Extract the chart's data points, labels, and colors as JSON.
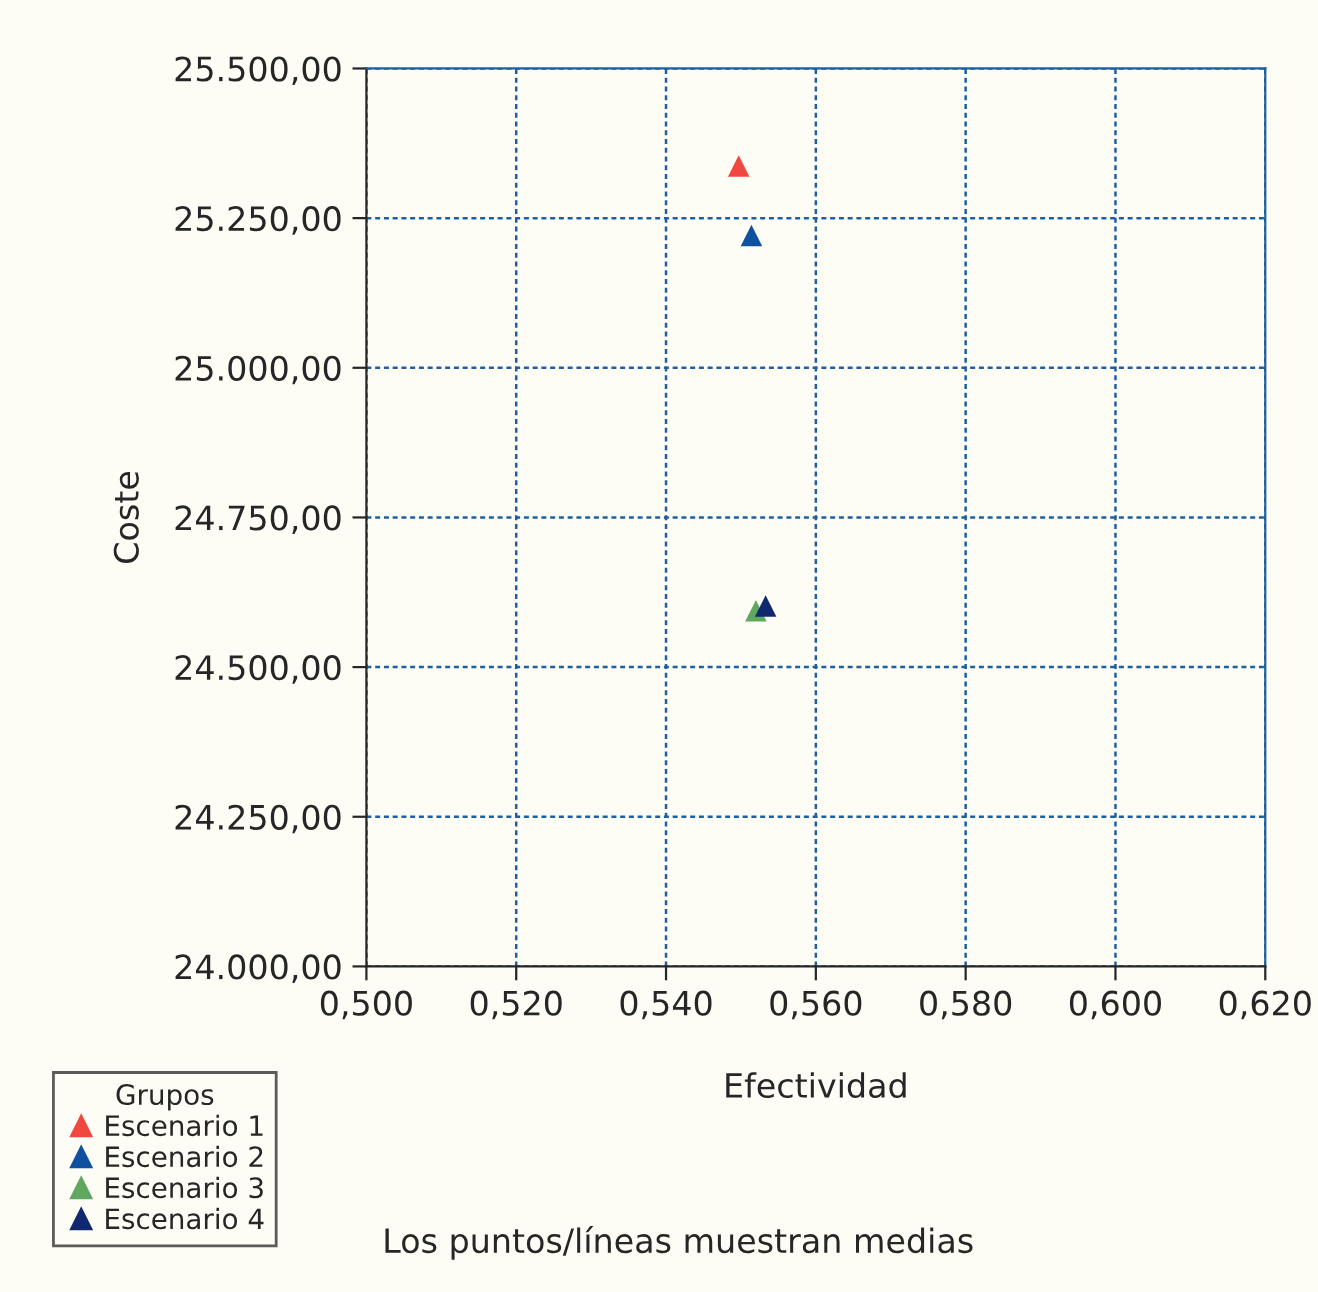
{
  "chart_data": {
    "type": "scatter",
    "xlabel": "Efectividad",
    "ylabel": "Coste",
    "legend_title": "Grupos",
    "xlim": [
      0.5,
      0.62
    ],
    "ylim": [
      24000,
      25500
    ],
    "xticks": [
      {
        "value": 0.5,
        "label": "0,500"
      },
      {
        "value": 0.52,
        "label": "0,520"
      },
      {
        "value": 0.54,
        "label": "0,540"
      },
      {
        "value": 0.56,
        "label": "0,560"
      },
      {
        "value": 0.58,
        "label": "0,580"
      },
      {
        "value": 0.6,
        "label": "0,600"
      },
      {
        "value": 0.62,
        "label": "0,620"
      }
    ],
    "yticks": [
      {
        "value": 24000,
        "label": "24.000,00"
      },
      {
        "value": 24250,
        "label": "24.250,00"
      },
      {
        "value": 24500,
        "label": "24.500,00"
      },
      {
        "value": 24750,
        "label": "24.750,00"
      },
      {
        "value": 25000,
        "label": "25.000,00"
      },
      {
        "value": 25250,
        "label": "25.250,00"
      },
      {
        "value": 25500,
        "label": "25.500,00"
      }
    ],
    "grid": true,
    "legend": "bottom left",
    "marker": "triangle",
    "series": [
      {
        "name": "Escenario 1",
        "color": "#f04840",
        "x": [
          0.5497
        ],
        "values": [
          25337
        ]
      },
      {
        "name": "Escenario 2",
        "color": "#1050a0",
        "x": [
          0.5514
        ],
        "values": [
          25221
        ]
      },
      {
        "name": "Escenario 3",
        "color": "#60a860",
        "x": [
          0.552
        ],
        "values": [
          24594
        ]
      },
      {
        "name": "Escenario 4",
        "color": "#102870",
        "x": [
          0.5533
        ],
        "values": [
          24602
        ]
      }
    ],
    "annotations": [
      "Los puntos/líneas muestran medias"
    ]
  }
}
